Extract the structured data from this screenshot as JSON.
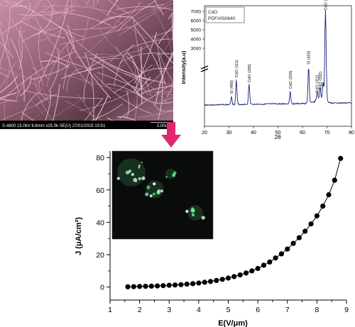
{
  "sem_image": {
    "caption": "S-4800 15.0kV 8.6mm x25.0k SE(U) 27/01/2015 10:51",
    "scale_bar": "2.00um"
  },
  "fluorescence_inset": {
    "colors": {
      "background": "#0a0c0b",
      "glow": "#6bff9b"
    }
  },
  "arrow": {
    "color": "#e0286e"
  },
  "chart_data": [
    {
      "type": "line",
      "legend": [
        "CdO",
        "PDF#050640"
      ],
      "xlabel": "2θ",
      "ylabel": "Intensity(a.u)",
      "xlim": [
        20,
        80
      ],
      "xticks": [
        20,
        30,
        40,
        50,
        60,
        70,
        80
      ],
      "yticks": [
        3000,
        4000,
        5000,
        6000,
        7000
      ],
      "axis_break": true,
      "color": "#1a237e",
      "peaks": [
        {
          "x": 31,
          "label": "Si (400)"
        },
        {
          "x": 33,
          "label": "CdO (111)"
        },
        {
          "x": 38.2,
          "label": "CdO (200)"
        },
        {
          "x": 55,
          "label": "CdO (220)"
        },
        {
          "x": 62.5,
          "label": "Si (420)"
        },
        {
          "x": 66,
          "label": "CdO (311)"
        },
        {
          "x": 67.2,
          "label": "CdO (332)"
        },
        {
          "x": 68.4,
          "label": "Si"
        },
        {
          "x": 69.4,
          "label": "CdO (222)"
        }
      ]
    },
    {
      "type": "scatter",
      "xlabel": "E(V/μm)",
      "ylabel": "J (μA/cm²)",
      "xlim": [
        1,
        9
      ],
      "ylim": [
        -8,
        84
      ],
      "xticks": [
        1,
        1.5,
        2,
        2.5,
        3,
        3.5,
        4,
        4.5,
        5,
        5.5,
        6,
        6.5,
        7,
        7.5,
        8,
        8.5,
        9
      ],
      "xtick_labels": [
        "1",
        "",
        "2",
        "",
        "3",
        "",
        "4",
        "",
        "5",
        "",
        "6",
        "",
        "7",
        "",
        "8",
        "",
        "9"
      ],
      "yticks": [
        0,
        20,
        40,
        60,
        80
      ],
      "x": [
        1.6,
        1.8,
        2.0,
        2.2,
        2.4,
        2.6,
        2.8,
        3.0,
        3.2,
        3.4,
        3.6,
        3.8,
        4.0,
        4.2,
        4.4,
        4.6,
        4.8,
        5.0,
        5.2,
        5.4,
        5.6,
        5.8,
        6.0,
        6.2,
        6.4,
        6.6,
        6.8,
        7.0,
        7.2,
        7.4,
        7.6,
        7.8,
        8.0,
        8.2,
        8.4,
        8.6,
        8.8
      ],
      "y": [
        0.2,
        0.3,
        0.4,
        0.5,
        0.6,
        0.7,
        0.9,
        1.1,
        1.3,
        1.5,
        1.8,
        2.1,
        2.5,
        3.0,
        3.5,
        4.1,
        4.8,
        5.6,
        6.5,
        7.5,
        8.7,
        10.0,
        11.5,
        13.5,
        15.5,
        18.0,
        20.5,
        23.5,
        27.0,
        30.5,
        34.5,
        39.0,
        44.0,
        50.0,
        57.0,
        66.0,
        79.5
      ]
    }
  ]
}
